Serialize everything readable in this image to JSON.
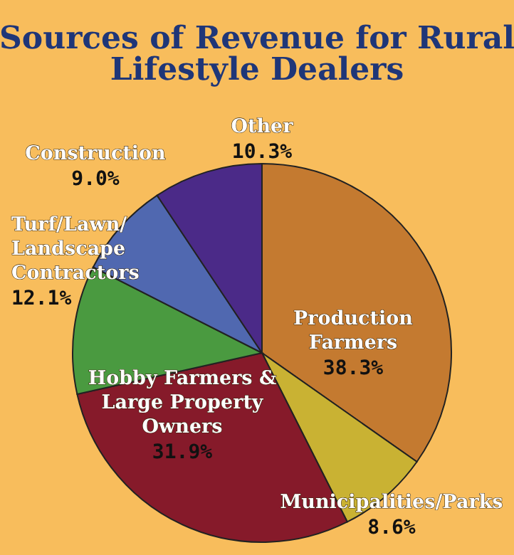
{
  "chart_data": {
    "type": "pie",
    "title": "Sources of Revenue for Rural Lifestyle Dealers",
    "categories": [
      "Production Farmers",
      "Municipalities/Parks",
      "Hobby Farmers & Large Property Owners",
      "Turf/Lawn/ Landscape Contractors",
      "Construction",
      "Other"
    ],
    "values": [
      38.3,
      8.6,
      31.9,
      12.1,
      9.0,
      10.3
    ],
    "value_labels": [
      "38.3%",
      "8.6%",
      "31.9%",
      "12.1%",
      "9.0%",
      "10.3%"
    ],
    "colors": [
      "#c47a30",
      "#c9b233",
      "#861a2a",
      "#4a9a40",
      "#5068b0",
      "#4b2a88"
    ]
  }
}
